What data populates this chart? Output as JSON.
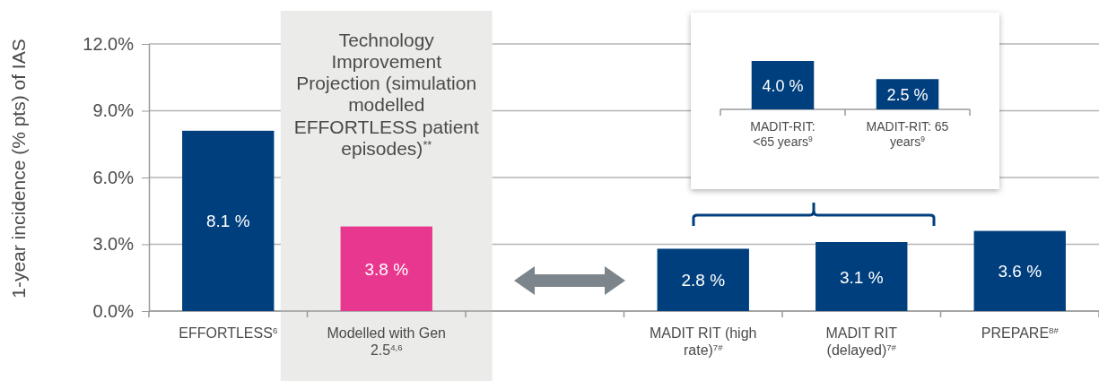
{
  "chart_data": [
    {
      "type": "bar",
      "ylabel": "1-year incidence (% pts) of IAS",
      "categories": [
        "EFFORTLESS$^{6}$",
        "Modelled with Gen 2.5$^{4,6}$",
        null,
        "MADIT RIT (high rate)$^{7#}$",
        "MADIT RIT (delayed)$^{7#}$",
        "PREPARE$^{8#}$"
      ],
      "values": [
        8.1,
        3.8,
        null,
        2.8,
        3.1,
        3.6
      ],
      "colors": [
        "#003f7d",
        "#e8378f",
        null,
        "#003f7d",
        "#003f7d",
        "#003f7d"
      ],
      "value_labels": [
        "8.1 %",
        "3.8 %",
        null,
        "2.8 %",
        "3.1 %",
        "3.6 %"
      ],
      "ylim": [
        0,
        12
      ],
      "yticks": [
        {
          "value": 0,
          "label": "0.0%"
        },
        {
          "value": 3,
          "label": "3.0%"
        },
        {
          "value": 6,
          "label": "6.0%"
        },
        {
          "value": 9,
          "label": "9.0%"
        },
        {
          "value": 12,
          "label": "12.0%"
        }
      ],
      "grid": "y",
      "annotations": [
        "Technology Improvement Projection (simulation modelled EFFORTLESS patient episodes)$^{**}$"
      ]
    },
    {
      "type": "bar",
      "categories": [
        "MADIT-RIT: <65 years$^{9}$",
        "MADIT-RIT: 65 years$^{9}$"
      ],
      "values": [
        4.0,
        2.5
      ],
      "colors": [
        "#003f7d",
        "#003f7d"
      ],
      "value_labels": [
        "4.0 %",
        "2.5 %"
      ]
    }
  ]
}
